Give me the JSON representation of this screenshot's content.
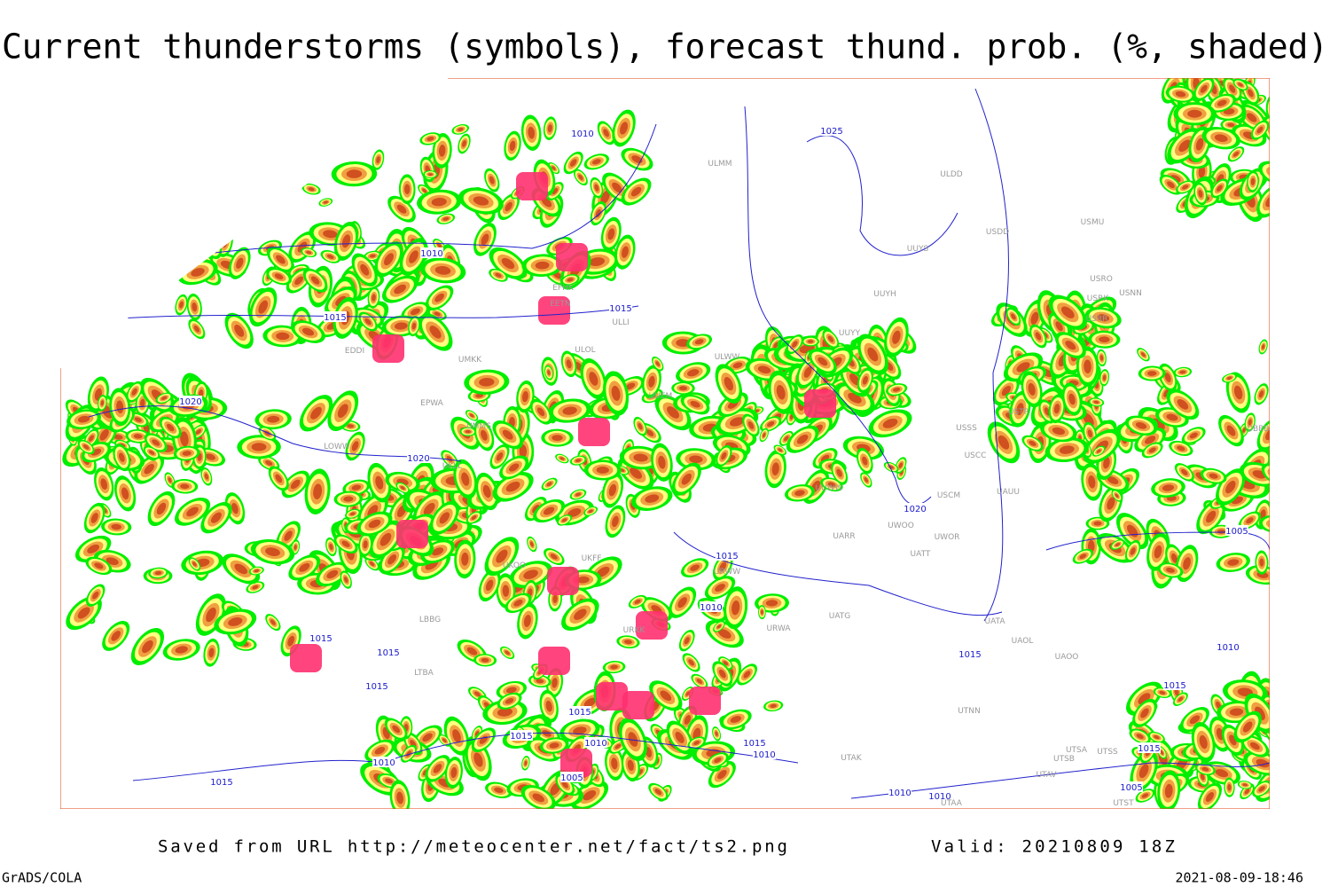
{
  "header": {
    "title": "Current thunderstorms (symbols), forecast thund. prob. (%, shaded)"
  },
  "footer": {
    "saved": "Saved from URL http://meteocenter.net/fact/ts2.png",
    "valid": "Valid: 20210809 18Z",
    "software": "GrADS/COLA",
    "timestamp": "2021-08-09-18:46"
  },
  "isobar_labels": [
    "1010",
    "1010",
    "1015",
    "1015",
    "1020",
    "1020",
    "1025",
    "1020",
    "1015",
    "1010",
    "1015",
    "1015",
    "1015",
    "1015",
    "1015",
    "1015",
    "1010",
    "1015",
    "1010",
    "1005",
    "1010",
    "1015",
    "1010",
    "1010",
    "1005",
    "1010",
    "1015",
    "1015",
    "1005"
  ],
  "stations": [
    "ULMM",
    "ULDD",
    "USDD",
    "USMU",
    "UUYS",
    "USRO",
    "USRK",
    "USNN",
    "EFHK",
    "EETN",
    "ULLI",
    "EDDI",
    "ULOL",
    "UMKK",
    "ULWW",
    "UUYY",
    "UUYH",
    "USRR",
    "EPWA",
    "UUEM",
    "UMMS",
    "LOWW",
    "UKLL",
    "UUWW",
    "USSS",
    "USTR",
    "USCC",
    "USCM",
    "UAUU",
    "UWOO",
    "UWOR",
    "UATT",
    "UARR",
    "URWW",
    "UKOO",
    "UKFF",
    "URKK",
    "URWA",
    "UATG",
    "LBBG",
    "LTBA",
    "UATA",
    "UAOL",
    "UAOO",
    "UTNN",
    "UTAK",
    "UTSA",
    "UTSB",
    "UTSS",
    "UTAV",
    "UTAA",
    "UTST",
    "UBBB"
  ]
}
